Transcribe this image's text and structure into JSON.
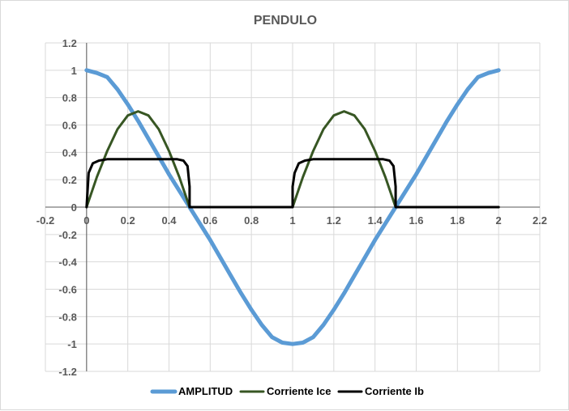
{
  "chart_data": {
    "type": "scatter",
    "title": "PENDULO",
    "xlabel": "",
    "ylabel": "",
    "xlim": [
      -0.2,
      2.2
    ],
    "ylim": [
      -1.2,
      1.2
    ],
    "x_ticks": [
      -0.2,
      0,
      0.2,
      0.4,
      0.6,
      0.8,
      1,
      1.2,
      1.4,
      1.6,
      1.8,
      2,
      2.2
    ],
    "y_ticks": [
      1.2,
      1,
      0.8,
      0.6,
      0.4,
      0.2,
      0,
      -0.2,
      -0.4,
      -0.6,
      -0.8,
      -1,
      -1.2
    ],
    "x_tick_labels": [
      "-0.2",
      "0",
      "0.2",
      "0.4",
      "0.6",
      "0.8",
      "1",
      "1.2",
      "1.4",
      "1.6",
      "1.8",
      "2",
      "2.2"
    ],
    "y_tick_labels": [
      "1.2",
      "1",
      "0.8",
      "0.6",
      "0.4",
      "0.2",
      "0",
      "-0.2",
      "-0.4",
      "-0.6",
      "-0.8",
      "-1",
      "-1.2"
    ],
    "grid": true,
    "legend_position": "bottom",
    "series": [
      {
        "name": "AMPLITUD",
        "color": "#5b9bd5",
        "x": [
          0,
          0.05,
          0.1,
          0.15,
          0.2,
          0.25,
          0.3,
          0.35,
          0.4,
          0.45,
          0.5,
          0.55,
          0.6,
          0.65,
          0.7,
          0.75,
          0.8,
          0.85,
          0.9,
          0.95,
          1,
          1.05,
          1.1,
          1.15,
          1.2,
          1.25,
          1.3,
          1.35,
          1.4,
          1.45,
          1.5,
          1.55,
          1.6,
          1.65,
          1.7,
          1.75,
          1.8,
          1.85,
          1.9,
          1.95,
          2
        ],
        "y": [
          1,
          0.98,
          0.95,
          0.86,
          0.75,
          0.63,
          0.5,
          0.37,
          0.24,
          0.12,
          0,
          -0.12,
          -0.24,
          -0.37,
          -0.5,
          -0.63,
          -0.75,
          -0.86,
          -0.95,
          -0.99,
          -1,
          -0.99,
          -0.95,
          -0.86,
          -0.75,
          -0.63,
          -0.5,
          -0.37,
          -0.24,
          -0.12,
          0,
          0.12,
          0.24,
          0.37,
          0.5,
          0.63,
          0.75,
          0.86,
          0.95,
          0.98,
          1
        ]
      },
      {
        "name": "Corriente Ice",
        "color": "#375623",
        "x": [
          0,
          0.05,
          0.1,
          0.15,
          0.2,
          0.25,
          0.3,
          0.35,
          0.4,
          0.45,
          0.5,
          0.55,
          0.6,
          0.65,
          0.7,
          0.75,
          0.8,
          0.85,
          0.9,
          0.95,
          1,
          1.05,
          1.1,
          1.15,
          1.2,
          1.25,
          1.3,
          1.35,
          1.4,
          1.45,
          1.5,
          1.55,
          1.6,
          1.65,
          1.7,
          1.75,
          1.8,
          1.85,
          1.9,
          1.95,
          2
        ],
        "y": [
          0,
          0.22,
          0.41,
          0.57,
          0.67,
          0.7,
          0.67,
          0.57,
          0.41,
          0.22,
          0,
          0,
          0,
          0,
          0,
          0,
          0,
          0,
          0,
          0,
          0,
          0.22,
          0.41,
          0.57,
          0.67,
          0.7,
          0.67,
          0.57,
          0.41,
          0.22,
          0,
          0,
          0,
          0,
          0,
          0,
          0,
          0,
          0,
          0,
          0
        ]
      },
      {
        "name": "Corriente Ib",
        "color": "#000000",
        "x": [
          0,
          0.01,
          0.03,
          0.06,
          0.1,
          0.2,
          0.3,
          0.4,
          0.44,
          0.47,
          0.49,
          0.5,
          0.5,
          0.6,
          0.7,
          0.8,
          0.9,
          1,
          1,
          1.01,
          1.03,
          1.06,
          1.1,
          1.2,
          1.3,
          1.4,
          1.44,
          1.47,
          1.49,
          1.5,
          1.5,
          1.6,
          1.7,
          1.8,
          1.9,
          2
        ],
        "y": [
          0,
          0.25,
          0.32,
          0.34,
          0.35,
          0.35,
          0.35,
          0.35,
          0.35,
          0.34,
          0.3,
          0.15,
          0,
          0,
          0,
          0,
          0,
          0,
          0.15,
          0.25,
          0.32,
          0.34,
          0.35,
          0.35,
          0.35,
          0.35,
          0.35,
          0.34,
          0.3,
          0.15,
          0,
          0,
          0,
          0,
          0,
          0
        ]
      }
    ]
  }
}
